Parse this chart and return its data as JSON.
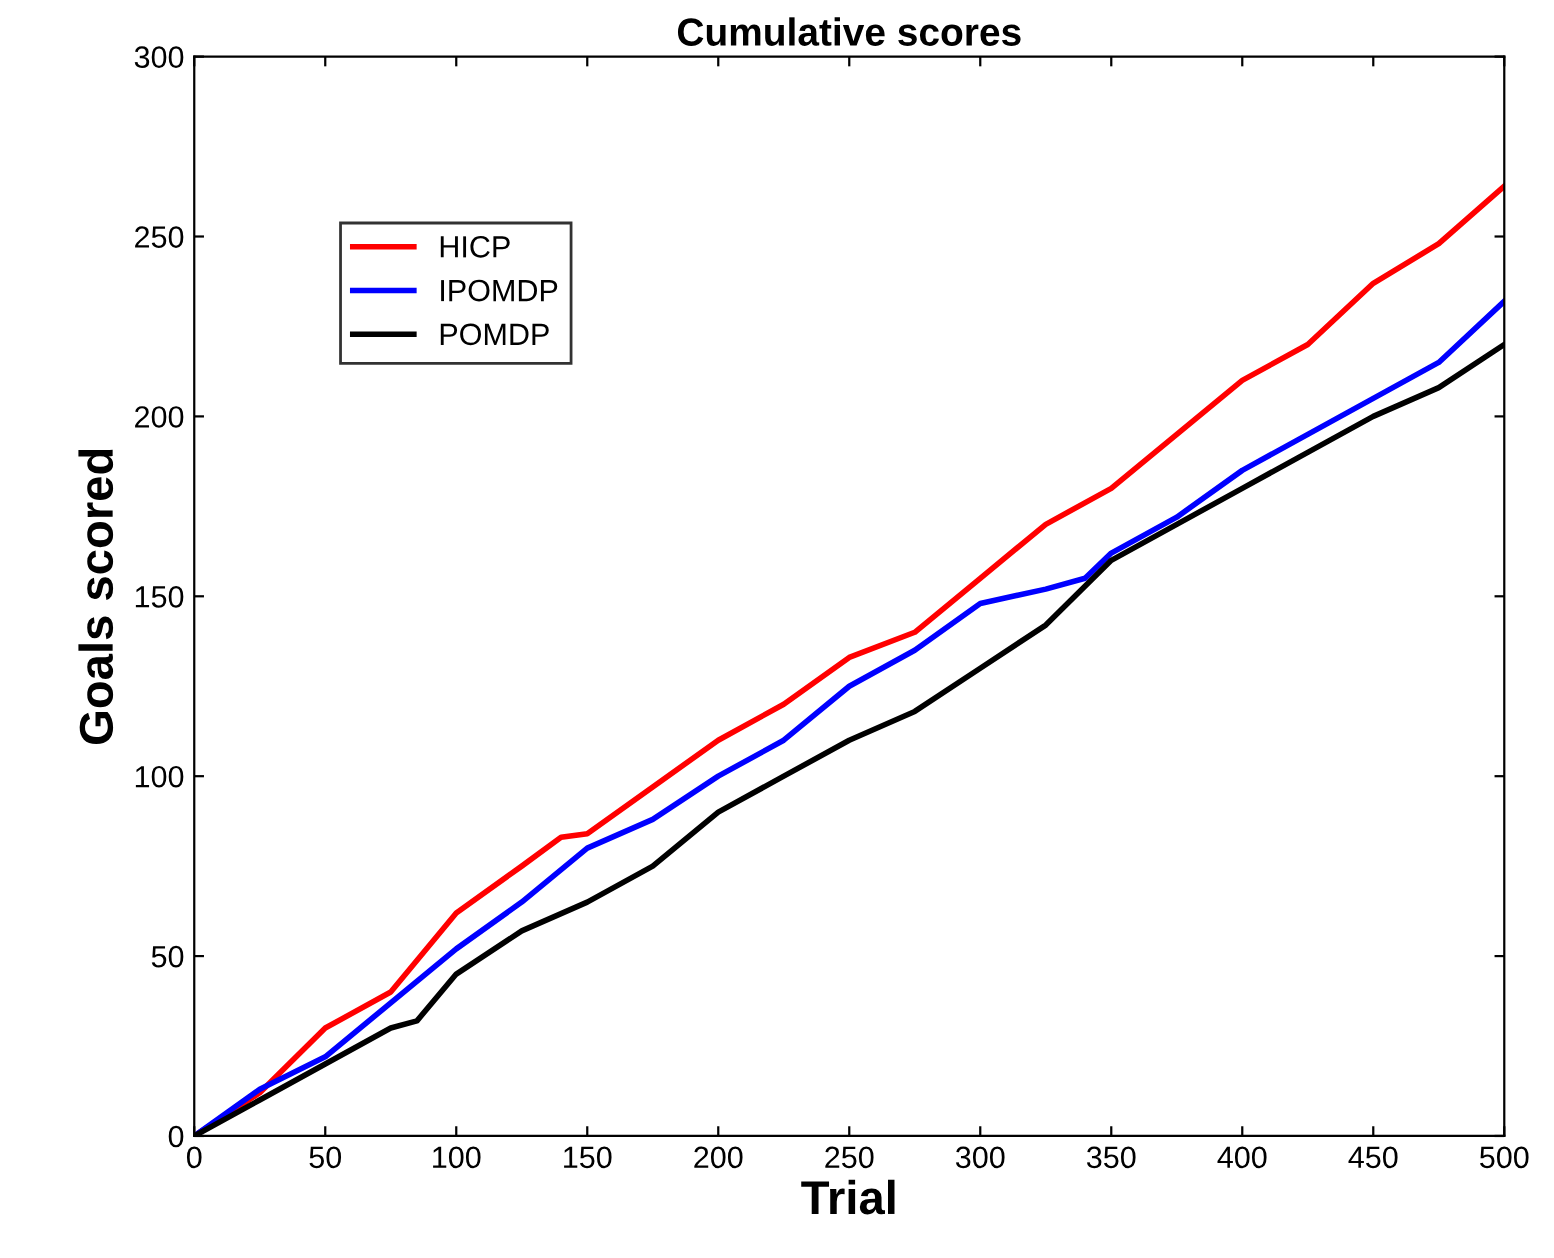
{
  "chart_data": {
    "type": "line",
    "title": "Cumulative scores",
    "xlabel": "Trial",
    "ylabel": "Goals scored",
    "xlim": [
      0,
      500
    ],
    "ylim": [
      0,
      300
    ],
    "xticks": [
      0,
      50,
      100,
      150,
      200,
      250,
      300,
      350,
      400,
      450,
      500
    ],
    "yticks": [
      0,
      50,
      100,
      150,
      200,
      250,
      300
    ],
    "grid": false,
    "legend": "top left",
    "line_style": "solid",
    "marker": "none",
    "series": [
      {
        "name": "HICP",
        "color": "#ff0000",
        "x": [
          0,
          25,
          50,
          75,
          100,
          125,
          140,
          150,
          175,
          200,
          225,
          250,
          275,
          300,
          325,
          350,
          375,
          400,
          425,
          450,
          475,
          500
        ],
        "values": [
          0,
          12,
          30,
          40,
          62,
          75,
          83,
          84,
          97,
          110,
          120,
          133,
          140,
          155,
          170,
          180,
          195,
          210,
          220,
          237,
          248,
          264
        ]
      },
      {
        "name": "IPOMDP",
        "color": "#0000ff",
        "x": [
          0,
          25,
          50,
          75,
          100,
          125,
          150,
          175,
          200,
          225,
          250,
          275,
          300,
          325,
          340,
          350,
          375,
          400,
          425,
          450,
          475,
          500
        ],
        "values": [
          0,
          13,
          22,
          37,
          52,
          65,
          80,
          88,
          100,
          110,
          125,
          135,
          148,
          152,
          155,
          162,
          172,
          185,
          195,
          205,
          215,
          232
        ]
      },
      {
        "name": "POMDP",
        "color": "#000000",
        "x": [
          0,
          25,
          50,
          75,
          85,
          100,
          125,
          150,
          175,
          200,
          225,
          250,
          275,
          300,
          325,
          350,
          375,
          400,
          425,
          450,
          475,
          500
        ],
        "values": [
          0,
          10,
          20,
          30,
          32,
          45,
          57,
          65,
          75,
          90,
          100,
          110,
          118,
          130,
          142,
          160,
          170,
          180,
          190,
          200,
          208,
          220
        ]
      }
    ]
  }
}
